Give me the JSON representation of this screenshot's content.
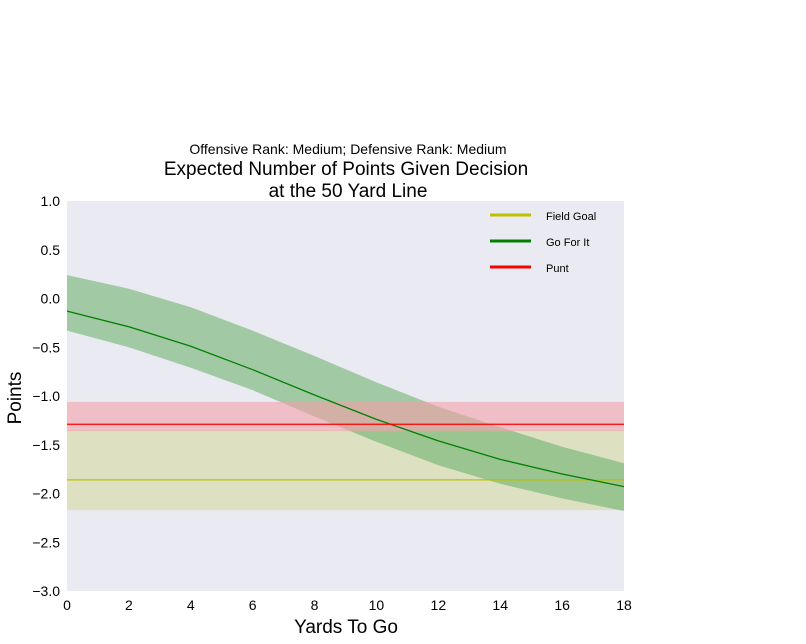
{
  "chart_data": {
    "type": "line",
    "subtitle": "Offensive Rank: Medium; Defensive Rank: Medium",
    "title_lines": [
      "Expected Number of Points Given Decision",
      "at the 50 Yard Line"
    ],
    "xlabel": "Yards To Go",
    "ylabel": "Points",
    "xlim": [
      0,
      18
    ],
    "ylim": [
      -3.0,
      1.0
    ],
    "xticks": [
      0,
      2,
      4,
      6,
      8,
      10,
      12,
      14,
      16,
      18
    ],
    "xtick_labels": [
      "0",
      "2",
      "4",
      "6",
      "8",
      "10",
      "12",
      "14",
      "16",
      "18"
    ],
    "yticks": [
      1.0,
      0.5,
      0.0,
      -0.5,
      -1.0,
      -1.5,
      -2.0,
      -2.5,
      -3.0
    ],
    "ytick_labels": [
      "1.0",
      "0.5",
      "0.0",
      "−0.5",
      "−1.0",
      "−1.5",
      "−2.0",
      "−2.5",
      "−3.0"
    ],
    "grid": false,
    "legend_position": "top-right",
    "series": [
      {
        "name": "Field Goal",
        "color": "#bfbf00",
        "band_color": "#d4dba0",
        "x": [
          0,
          18
        ],
        "y": [
          -1.86,
          -1.86
        ],
        "lower": [
          -2.17,
          -2.17
        ],
        "upper": [
          -1.35,
          -1.35
        ]
      },
      {
        "name": "Go For It",
        "color": "#008000",
        "band_color": "#6fb36f",
        "x": [
          0,
          2,
          4,
          6,
          8,
          10,
          12,
          14,
          16,
          18
        ],
        "y": [
          -0.13,
          -0.29,
          -0.49,
          -0.73,
          -0.99,
          -1.24,
          -1.46,
          -1.65,
          -1.8,
          -1.93
        ],
        "lower": [
          -0.33,
          -0.5,
          -0.71,
          -0.94,
          -1.21,
          -1.47,
          -1.71,
          -1.9,
          -2.05,
          -2.18
        ],
        "upper": [
          0.24,
          0.1,
          -0.09,
          -0.33,
          -0.59,
          -0.86,
          -1.11,
          -1.32,
          -1.52,
          -1.69
        ]
      },
      {
        "name": "Punt",
        "color": "#ff0000",
        "band_color": "#f3a0a8",
        "x": [
          0,
          18
        ],
        "y": [
          -1.29,
          -1.29
        ],
        "lower": [
          -1.36,
          -1.36
        ],
        "upper": [
          -1.06,
          -1.06
        ]
      }
    ]
  }
}
